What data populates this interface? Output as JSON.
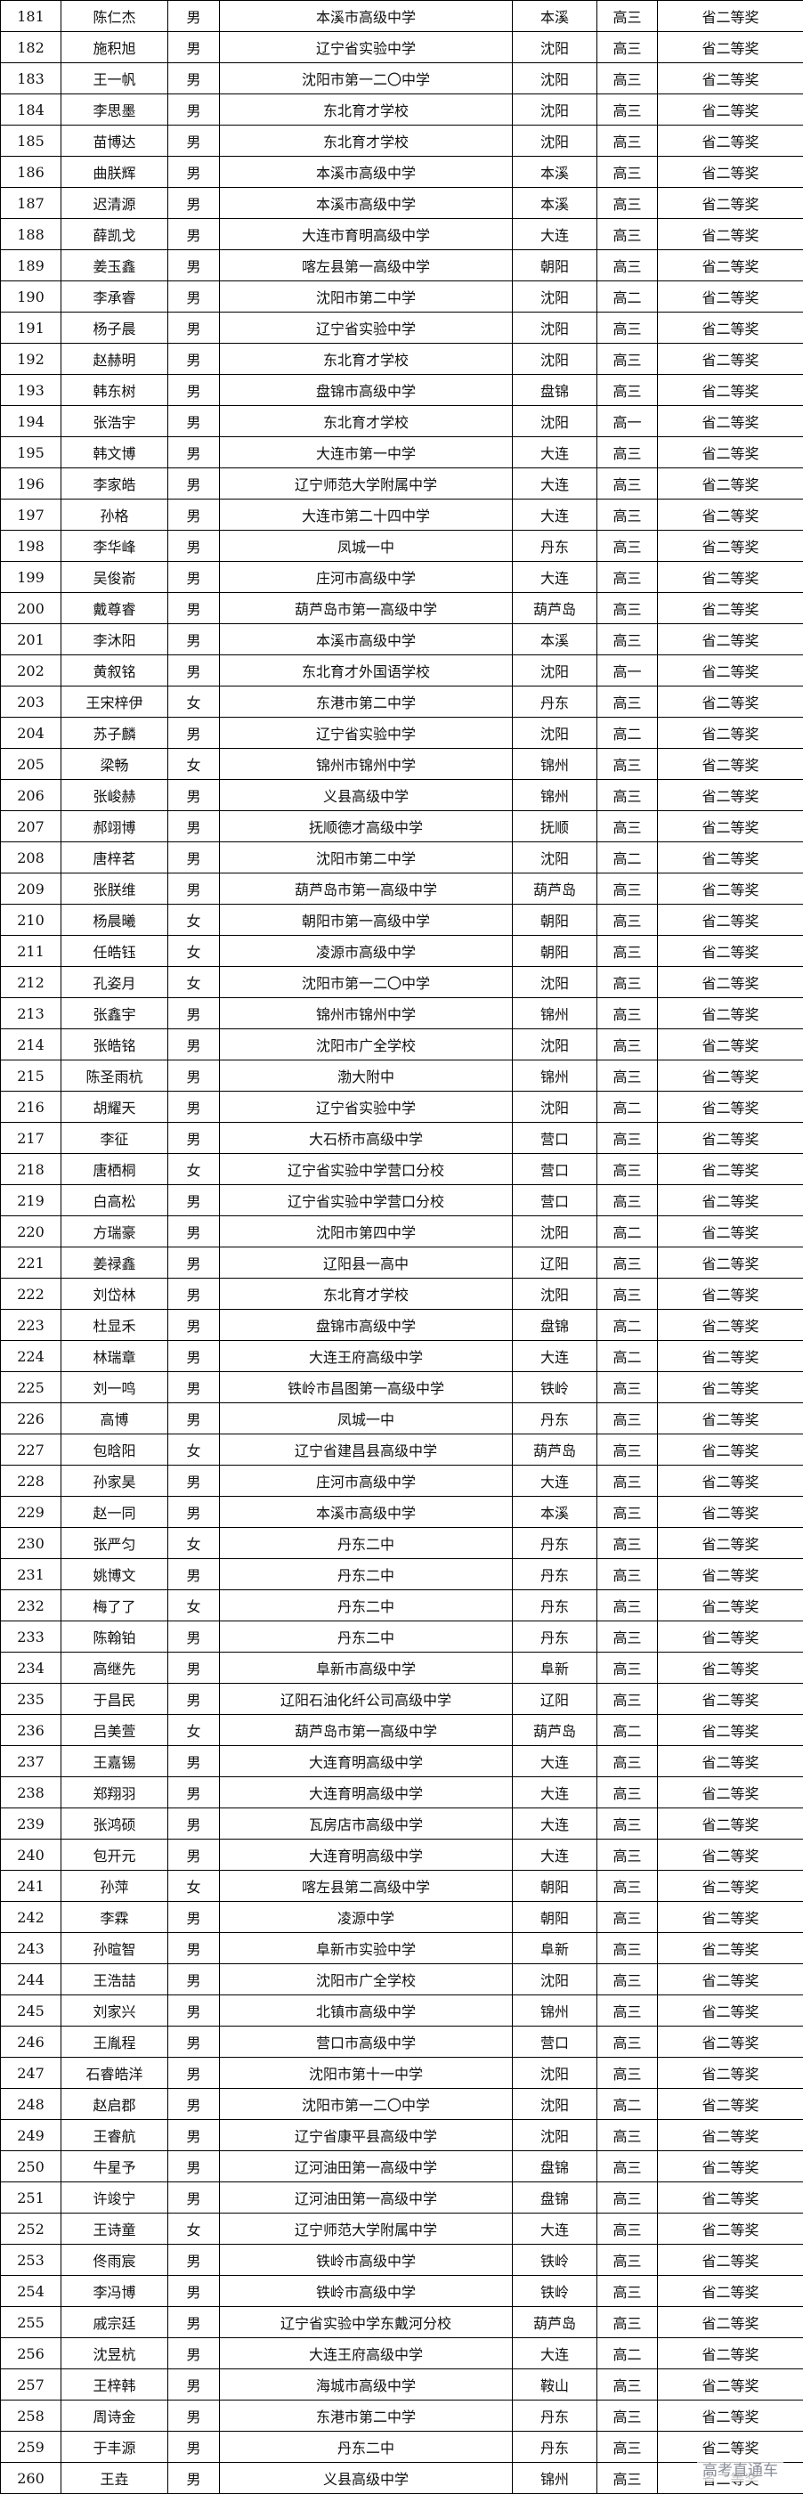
{
  "table": {
    "rows": [
      [
        181,
        "陈仁杰",
        "男",
        "本溪市高级中学",
        "本溪",
        "高三",
        "省二等奖"
      ],
      [
        182,
        "施积旭",
        "男",
        "辽宁省实验中学",
        "沈阳",
        "高三",
        "省二等奖"
      ],
      [
        183,
        "王一帆",
        "男",
        "沈阳市第一二〇中学",
        "沈阳",
        "高三",
        "省二等奖"
      ],
      [
        184,
        "李思墨",
        "男",
        "东北育才学校",
        "沈阳",
        "高三",
        "省二等奖"
      ],
      [
        185,
        "苗博达",
        "男",
        "东北育才学校",
        "沈阳",
        "高三",
        "省二等奖"
      ],
      [
        186,
        "曲朕辉",
        "男",
        "本溪市高级中学",
        "本溪",
        "高三",
        "省二等奖"
      ],
      [
        187,
        "迟清源",
        "男",
        "本溪市高级中学",
        "本溪",
        "高三",
        "省二等奖"
      ],
      [
        188,
        "薛凯戈",
        "男",
        "大连市育明高级中学",
        "大连",
        "高三",
        "省二等奖"
      ],
      [
        189,
        "姜玉鑫",
        "男",
        "喀左县第一高级中学",
        "朝阳",
        "高三",
        "省二等奖"
      ],
      [
        190,
        "李承睿",
        "男",
        "沈阳市第二中学",
        "沈阳",
        "高二",
        "省二等奖"
      ],
      [
        191,
        "杨子晨",
        "男",
        "辽宁省实验中学",
        "沈阳",
        "高三",
        "省二等奖"
      ],
      [
        192,
        "赵赫明",
        "男",
        "东北育才学校",
        "沈阳",
        "高三",
        "省二等奖"
      ],
      [
        193,
        "韩东树",
        "男",
        "盘锦市高级中学",
        "盘锦",
        "高三",
        "省二等奖"
      ],
      [
        194,
        "张浩宇",
        "男",
        "东北育才学校",
        "沈阳",
        "高一",
        "省二等奖"
      ],
      [
        195,
        "韩文博",
        "男",
        "大连市第一中学",
        "大连",
        "高三",
        "省二等奖"
      ],
      [
        196,
        "李家皓",
        "男",
        "辽宁师范大学附属中学",
        "大连",
        "高三",
        "省二等奖"
      ],
      [
        197,
        "孙格",
        "男",
        "大连市第二十四中学",
        "大连",
        "高三",
        "省二等奖"
      ],
      [
        198,
        "李华峰",
        "男",
        "凤城一中",
        "丹东",
        "高三",
        "省二等奖"
      ],
      [
        199,
        "吴俊嵛",
        "男",
        "庄河市高级中学",
        "大连",
        "高三",
        "省二等奖"
      ],
      [
        200,
        "戴尊睿",
        "男",
        "葫芦岛市第一高级中学",
        "葫芦岛",
        "高三",
        "省二等奖"
      ],
      [
        201,
        "李沐阳",
        "男",
        "本溪市高级中学",
        "本溪",
        "高三",
        "省二等奖"
      ],
      [
        202,
        "黄叙铭",
        "男",
        "东北育才外国语学校",
        "沈阳",
        "高一",
        "省二等奖"
      ],
      [
        203,
        "王宋梓伊",
        "女",
        "东港市第二中学",
        "丹东",
        "高三",
        "省二等奖"
      ],
      [
        204,
        "苏子麟",
        "男",
        "辽宁省实验中学",
        "沈阳",
        "高二",
        "省二等奖"
      ],
      [
        205,
        "梁畅",
        "女",
        "锦州市锦州中学",
        "锦州",
        "高三",
        "省二等奖"
      ],
      [
        206,
        "张峻赫",
        "男",
        "义县高级中学",
        "锦州",
        "高三",
        "省二等奖"
      ],
      [
        207,
        "郝翊博",
        "男",
        "抚顺德才高级中学",
        "抚顺",
        "高三",
        "省二等奖"
      ],
      [
        208,
        "唐梓茗",
        "男",
        "沈阳市第二中学",
        "沈阳",
        "高二",
        "省二等奖"
      ],
      [
        209,
        "张朕维",
        "男",
        "葫芦岛市第一高级中学",
        "葫芦岛",
        "高三",
        "省二等奖"
      ],
      [
        210,
        "杨晨曦",
        "女",
        "朝阳市第一高级中学",
        "朝阳",
        "高三",
        "省二等奖"
      ],
      [
        211,
        "任皓钰",
        "女",
        "凌源市高级中学",
        "朝阳",
        "高三",
        "省二等奖"
      ],
      [
        212,
        "孔姿月",
        "女",
        "沈阳市第一二〇中学",
        "沈阳",
        "高三",
        "省二等奖"
      ],
      [
        213,
        "张鑫宇",
        "男",
        "锦州市锦州中学",
        "锦州",
        "高三",
        "省二等奖"
      ],
      [
        214,
        "张皓铭",
        "男",
        "沈阳市广全学校",
        "沈阳",
        "高三",
        "省二等奖"
      ],
      [
        215,
        "陈圣雨杭",
        "男",
        "渤大附中",
        "锦州",
        "高三",
        "省二等奖"
      ],
      [
        216,
        "胡耀天",
        "男",
        "辽宁省实验中学",
        "沈阳",
        "高二",
        "省二等奖"
      ],
      [
        217,
        "李征",
        "男",
        "大石桥市高级中学",
        "营口",
        "高三",
        "省二等奖"
      ],
      [
        218,
        "唐栖桐",
        "女",
        "辽宁省实验中学营口分校",
        "营口",
        "高三",
        "省二等奖"
      ],
      [
        219,
        "白高松",
        "男",
        "辽宁省实验中学营口分校",
        "营口",
        "高三",
        "省二等奖"
      ],
      [
        220,
        "方瑞豪",
        "男",
        "沈阳市第四中学",
        "沈阳",
        "高二",
        "省二等奖"
      ],
      [
        221,
        "姜禄鑫",
        "男",
        "辽阳县一高中",
        "辽阳",
        "高三",
        "省二等奖"
      ],
      [
        222,
        "刘岱林",
        "男",
        "东北育才学校",
        "沈阳",
        "高三",
        "省二等奖"
      ],
      [
        223,
        "杜显禾",
        "男",
        "盘锦市高级中学",
        "盘锦",
        "高二",
        "省二等奖"
      ],
      [
        224,
        "林瑞章",
        "男",
        "大连王府高级中学",
        "大连",
        "高二",
        "省二等奖"
      ],
      [
        225,
        "刘一鸣",
        "男",
        "铁岭市昌图第一高级中学",
        "铁岭",
        "高三",
        "省二等奖"
      ],
      [
        226,
        "高博",
        "男",
        "凤城一中",
        "丹东",
        "高三",
        "省二等奖"
      ],
      [
        227,
        "包晗阳",
        "女",
        "辽宁省建昌县高级中学",
        "葫芦岛",
        "高三",
        "省二等奖"
      ],
      [
        228,
        "孙家昊",
        "男",
        "庄河市高级中学",
        "大连",
        "高三",
        "省二等奖"
      ],
      [
        229,
        "赵一同",
        "男",
        "本溪市高级中学",
        "本溪",
        "高三",
        "省二等奖"
      ],
      [
        230,
        "张严匀",
        "女",
        "丹东二中",
        "丹东",
        "高三",
        "省二等奖"
      ],
      [
        231,
        "姚博文",
        "男",
        "丹东二中",
        "丹东",
        "高三",
        "省二等奖"
      ],
      [
        232,
        "梅了了",
        "女",
        "丹东二中",
        "丹东",
        "高三",
        "省二等奖"
      ],
      [
        233,
        "陈翰铂",
        "男",
        "丹东二中",
        "丹东",
        "高三",
        "省二等奖"
      ],
      [
        234,
        "高继先",
        "男",
        "阜新市高级中学",
        "阜新",
        "高三",
        "省二等奖"
      ],
      [
        235,
        "于昌民",
        "男",
        "辽阳石油化纤公司高级中学",
        "辽阳",
        "高三",
        "省二等奖"
      ],
      [
        236,
        "吕美萱",
        "女",
        "葫芦岛市第一高级中学",
        "葫芦岛",
        "高二",
        "省二等奖"
      ],
      [
        237,
        "王嘉锡",
        "男",
        "大连育明高级中学",
        "大连",
        "高三",
        "省二等奖"
      ],
      [
        238,
        "郑翔羽",
        "男",
        "大连育明高级中学",
        "大连",
        "高三",
        "省二等奖"
      ],
      [
        239,
        "张鸿硕",
        "男",
        "瓦房店市高级中学",
        "大连",
        "高三",
        "省二等奖"
      ],
      [
        240,
        "包开元",
        "男",
        "大连育明高级中学",
        "大连",
        "高三",
        "省二等奖"
      ],
      [
        241,
        "孙萍",
        "女",
        "喀左县第二高级中学",
        "朝阳",
        "高三",
        "省二等奖"
      ],
      [
        242,
        "李霖",
        "男",
        "凌源中学",
        "朝阳",
        "高三",
        "省二等奖"
      ],
      [
        243,
        "孙暄智",
        "男",
        "阜新市实验中学",
        "阜新",
        "高三",
        "省二等奖"
      ],
      [
        244,
        "王浩喆",
        "男",
        "沈阳市广全学校",
        "沈阳",
        "高三",
        "省二等奖"
      ],
      [
        245,
        "刘家兴",
        "男",
        "北镇市高级中学",
        "锦州",
        "高三",
        "省二等奖"
      ],
      [
        246,
        "王胤程",
        "男",
        "营口市高级中学",
        "营口",
        "高三",
        "省二等奖"
      ],
      [
        247,
        "石睿皓洋",
        "男",
        "沈阳市第十一中学",
        "沈阳",
        "高三",
        "省二等奖"
      ],
      [
        248,
        "赵启郡",
        "男",
        "沈阳市第一二〇中学",
        "沈阳",
        "高二",
        "省二等奖"
      ],
      [
        249,
        "王睿航",
        "男",
        "辽宁省康平县高级中学",
        "沈阳",
        "高三",
        "省二等奖"
      ],
      [
        250,
        "牛星予",
        "男",
        "辽河油田第一高级中学",
        "盘锦",
        "高三",
        "省二等奖"
      ],
      [
        251,
        "许竣宁",
        "男",
        "辽河油田第一高级中学",
        "盘锦",
        "高三",
        "省二等奖"
      ],
      [
        252,
        "王诗童",
        "女",
        "辽宁师范大学附属中学",
        "大连",
        "高三",
        "省二等奖"
      ],
      [
        253,
        "佟雨宸",
        "男",
        "铁岭市高级中学",
        "铁岭",
        "高三",
        "省二等奖"
      ],
      [
        254,
        "李冯博",
        "男",
        "铁岭市高级中学",
        "铁岭",
        "高三",
        "省二等奖"
      ],
      [
        255,
        "戚宗廷",
        "男",
        "辽宁省实验中学东戴河分校",
        "葫芦岛",
        "高三",
        "省二等奖"
      ],
      [
        256,
        "沈昱杭",
        "男",
        "大连王府高级中学",
        "大连",
        "高二",
        "省二等奖"
      ],
      [
        257,
        "王梓韩",
        "男",
        "海城市高级中学",
        "鞍山",
        "高三",
        "省二等奖"
      ],
      [
        258,
        "周诗金",
        "男",
        "东港市第二中学",
        "丹东",
        "高三",
        "省二等奖"
      ],
      [
        259,
        "于丰源",
        "男",
        "丹东二中",
        "丹东",
        "高三",
        "省二等奖"
      ],
      [
        260,
        "王垚",
        "男",
        "义县高级中学",
        "锦州",
        "高三",
        "省二等奖"
      ]
    ]
  },
  "watermark": "高考直通车"
}
